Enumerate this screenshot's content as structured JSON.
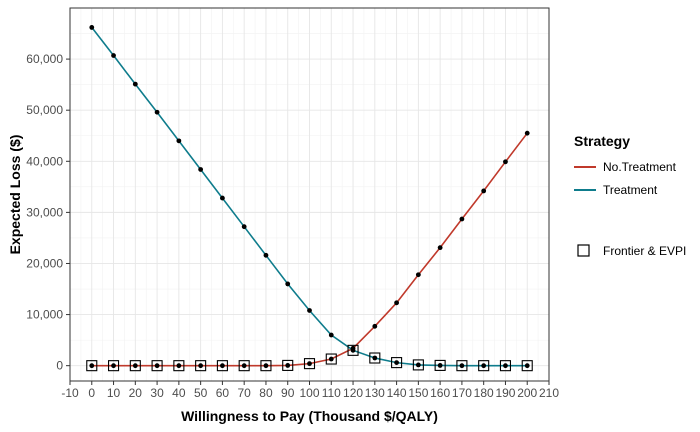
{
  "chart_data": {
    "type": "line",
    "title": "",
    "xlabel": "Willingness to Pay (Thousand $/QALY)",
    "ylabel": "Expected Loss ($)",
    "xlim": [
      -10,
      210
    ],
    "ylim": [
      -3000,
      70000
    ],
    "x_ticks": [
      -10,
      0,
      10,
      20,
      30,
      40,
      50,
      60,
      70,
      80,
      90,
      100,
      110,
      120,
      130,
      140,
      150,
      160,
      170,
      180,
      190,
      200,
      210
    ],
    "y_ticks": [
      0,
      10000,
      20000,
      30000,
      40000,
      50000,
      60000
    ],
    "y_tick_labels": [
      "0",
      "10,000",
      "20,000",
      "30,000",
      "40,000",
      "50,000",
      "60,000"
    ],
    "grid": true,
    "x": [
      0,
      10,
      20,
      30,
      40,
      50,
      60,
      70,
      80,
      90,
      100,
      110,
      120,
      130,
      140,
      150,
      160,
      170,
      180,
      190,
      200
    ],
    "series": [
      {
        "name": "No.Treatment",
        "color": "#C0392B",
        "values": [
          0,
          0,
          0,
          0,
          0,
          0,
          0,
          0,
          0,
          50,
          400,
          1300,
          3400,
          7700,
          12300,
          17800,
          23100,
          28700,
          34200,
          39900,
          45500
        ]
      },
      {
        "name": "Treatment",
        "color": "#0E7C8C",
        "values": [
          66200,
          60700,
          55100,
          49600,
          44000,
          38400,
          32800,
          27200,
          21600,
          16000,
          10800,
          6000,
          3000,
          1500,
          600,
          150,
          50,
          0,
          0,
          0,
          0
        ]
      }
    ],
    "frontier": {
      "name": "Frontier & EVPI",
      "values": [
        0,
        0,
        0,
        0,
        0,
        0,
        0,
        0,
        0,
        50,
        400,
        1300,
        3000,
        1500,
        600,
        150,
        50,
        0,
        0,
        0,
        0
      ]
    },
    "legend": {
      "title": "Strategy",
      "position": "right",
      "items": [
        "No.Treatment",
        "Treatment"
      ],
      "frontier_label": "Frontier & EVPI"
    }
  }
}
